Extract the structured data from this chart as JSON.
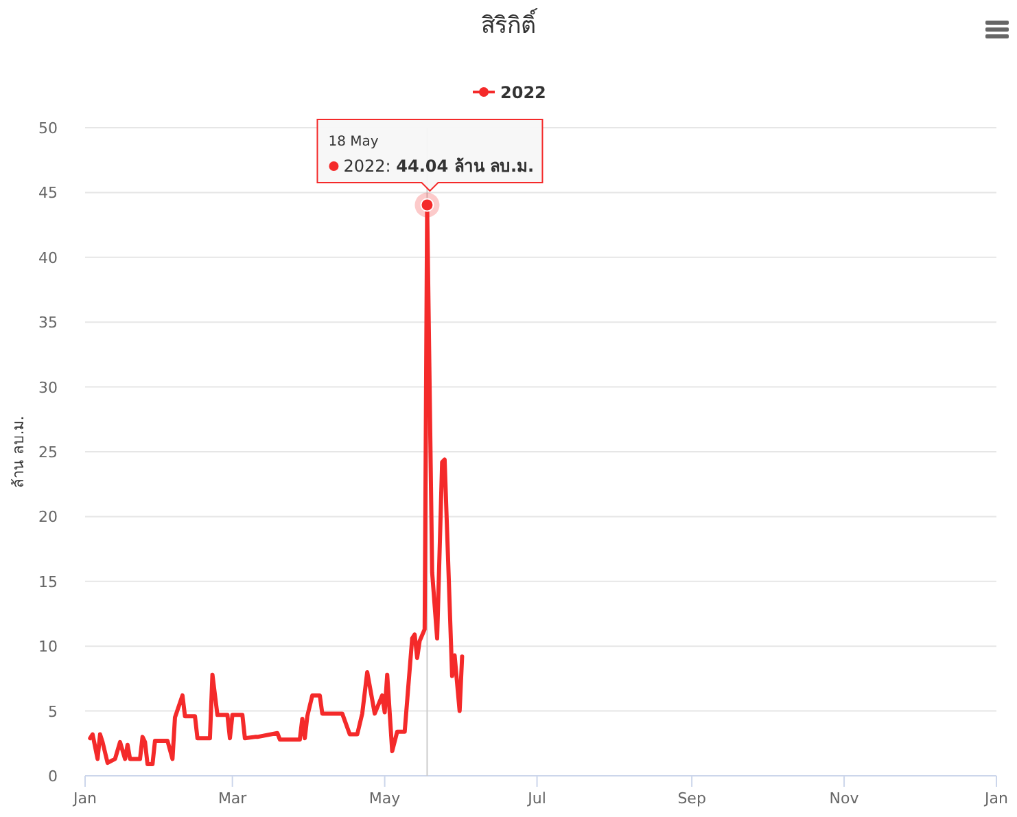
{
  "chart_data": {
    "type": "line",
    "title": "สิริกิติ์",
    "ylabel": "ล้าน ลบ.ม.",
    "x": [
      "2022-01-03",
      "2022-01-04",
      "2022-01-06",
      "2022-01-07",
      "2022-01-08",
      "2022-01-10",
      "2022-01-13",
      "2022-01-15",
      "2022-01-17",
      "2022-01-18",
      "2022-01-19",
      "2022-01-23",
      "2022-01-24",
      "2022-01-25",
      "2022-01-26",
      "2022-01-28",
      "2022-01-29",
      "2022-02-03",
      "2022-02-05",
      "2022-02-06",
      "2022-02-09",
      "2022-02-10",
      "2022-02-14",
      "2022-02-15",
      "2022-02-20",
      "2022-02-21",
      "2022-02-23",
      "2022-02-27",
      "2022-02-28",
      "2022-03-01",
      "2022-03-05",
      "2022-03-06",
      "2022-03-10",
      "2022-03-11",
      "2022-03-19",
      "2022-03-20",
      "2022-03-28",
      "2022-03-29",
      "2022-03-30",
      "2022-03-31",
      "2022-04-02",
      "2022-04-05",
      "2022-04-06",
      "2022-04-14",
      "2022-04-17",
      "2022-04-20",
      "2022-04-22",
      "2022-04-24",
      "2022-04-27",
      "2022-04-30",
      "2022-05-01",
      "2022-05-02",
      "2022-05-04",
      "2022-05-06",
      "2022-05-09",
      "2022-05-12",
      "2022-05-13",
      "2022-05-14",
      "2022-05-15",
      "2022-05-17",
      "2022-05-18",
      "2022-05-20",
      "2022-05-22",
      "2022-05-24",
      "2022-05-25",
      "2022-05-28",
      "2022-05-29",
      "2022-05-31",
      "2022-06-01"
    ],
    "series": [
      {
        "name": "2022",
        "color": "#f42a2a",
        "values": [
          2.9,
          3.2,
          1.3,
          3.2,
          2.6,
          1.0,
          1.3,
          2.6,
          1.3,
          2.4,
          1.3,
          1.3,
          3.0,
          2.6,
          0.9,
          0.9,
          2.7,
          2.7,
          1.3,
          4.5,
          6.2,
          4.6,
          4.6,
          2.9,
          2.9,
          7.8,
          4.7,
          4.7,
          2.9,
          4.7,
          4.7,
          2.9,
          3.0,
          3.0,
          3.3,
          2.8,
          2.8,
          4.4,
          2.9,
          4.6,
          6.2,
          6.2,
          4.8,
          4.8,
          3.2,
          3.2,
          4.8,
          8.0,
          4.8,
          6.2,
          4.9,
          7.8,
          1.9,
          3.4,
          3.4,
          10.6,
          10.9,
          9.1,
          10.4,
          11.3,
          44.04,
          15.7,
          10.6,
          24.2,
          24.4,
          7.7,
          9.3,
          5.0,
          9.2
        ]
      }
    ],
    "xlim": [
      "2022-01-01",
      "2023-01-01"
    ],
    "xticks": [
      {
        "value": "2022-01-01",
        "label": "Jan"
      },
      {
        "value": "2022-03-01",
        "label": "Mar"
      },
      {
        "value": "2022-05-01",
        "label": "May"
      },
      {
        "value": "2022-07-01",
        "label": "Jul"
      },
      {
        "value": "2022-09-01",
        "label": "Sep"
      },
      {
        "value": "2022-11-01",
        "label": "Nov"
      },
      {
        "value": "2023-01-01",
        "label": "Jan"
      }
    ],
    "ylim": [
      0,
      50
    ],
    "yticks": [
      0,
      5,
      10,
      15,
      20,
      25,
      30,
      35,
      40,
      45,
      50
    ],
    "grid": "y",
    "legend": "top",
    "marker": "none",
    "line_style": "solid",
    "ref_lines": [
      {
        "axis": "x",
        "value": "2022-05-18",
        "color": "#cccccc"
      }
    ],
    "annotations": [
      "18 May",
      "2022: 44.04 ล้าน ลบ.ม."
    ]
  }
}
